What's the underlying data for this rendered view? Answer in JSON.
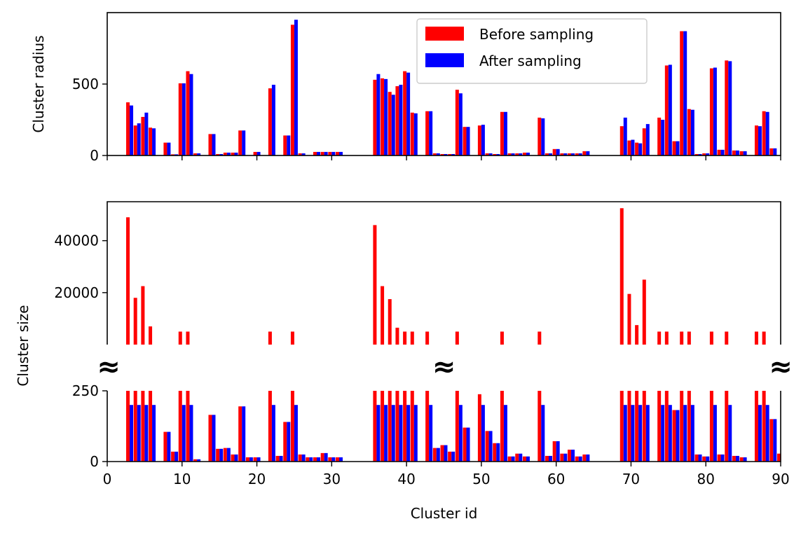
{
  "chart_data": [
    {
      "panel": "top",
      "type": "bar",
      "ylabel": "Cluster radius",
      "xlim": [
        0,
        90
      ],
      "ylim": [
        0,
        1000
      ],
      "yticks": [
        0,
        500
      ],
      "show_xticklabels": false,
      "grid": false,
      "legend": {
        "placement": "top-center"
      },
      "series": [
        {
          "name": "Before sampling",
          "color": "#ff0000",
          "x": [
            3,
            4,
            5,
            6,
            8,
            9,
            10,
            11,
            12,
            14,
            15,
            16,
            17,
            18,
            20,
            22,
            24,
            25,
            26,
            28,
            29,
            30,
            31,
            36,
            37,
            38,
            39,
            40,
            41,
            43,
            44,
            45,
            46,
            47,
            48,
            50,
            51,
            52,
            53,
            54,
            55,
            56,
            58,
            59,
            60,
            61,
            62,
            63,
            64,
            69,
            70,
            71,
            72,
            74,
            75,
            76,
            77,
            78,
            79,
            80,
            81,
            82,
            83,
            84,
            85,
            87,
            88,
            89
          ],
          "values": [
            372,
            210,
            270,
            195,
            90,
            8,
            505,
            590,
            15,
            150,
            10,
            20,
            20,
            175,
            25,
            470,
            140,
            915,
            15,
            25,
            25,
            25,
            25,
            530,
            540,
            445,
            485,
            590,
            300,
            310,
            15,
            10,
            10,
            460,
            200,
            210,
            15,
            10,
            305,
            15,
            15,
            20,
            265,
            15,
            45,
            15,
            15,
            15,
            30,
            205,
            105,
            90,
            190,
            265,
            630,
            100,
            870,
            325,
            10,
            15,
            610,
            40,
            665,
            35,
            30,
            210,
            310,
            50
          ]
        },
        {
          "name": "After sampling",
          "color": "#0000ff",
          "x": [
            3,
            4,
            5,
            6,
            8,
            9,
            10,
            11,
            12,
            14,
            15,
            16,
            17,
            18,
            20,
            22,
            24,
            25,
            26,
            28,
            29,
            30,
            31,
            36,
            37,
            38,
            39,
            40,
            41,
            43,
            44,
            45,
            46,
            47,
            48,
            50,
            51,
            52,
            53,
            54,
            55,
            56,
            58,
            59,
            60,
            61,
            62,
            63,
            64,
            69,
            70,
            71,
            72,
            74,
            75,
            76,
            77,
            78,
            79,
            80,
            81,
            82,
            83,
            84,
            85,
            87,
            88,
            89
          ],
          "values": [
            350,
            225,
            300,
            190,
            90,
            8,
            505,
            570,
            15,
            150,
            10,
            20,
            20,
            175,
            25,
            495,
            140,
            950,
            15,
            25,
            25,
            25,
            25,
            570,
            535,
            425,
            495,
            580,
            295,
            310,
            15,
            10,
            10,
            435,
            200,
            215,
            15,
            10,
            305,
            15,
            15,
            20,
            260,
            15,
            45,
            15,
            15,
            15,
            30,
            265,
            110,
            85,
            220,
            250,
            635,
            100,
            870,
            320,
            10,
            15,
            615,
            40,
            660,
            35,
            30,
            205,
            305,
            50
          ]
        }
      ]
    },
    {
      "panel": "bottom",
      "type": "bar",
      "ylabel": "Cluster size",
      "xlabel": "Cluster id",
      "xlim": [
        0,
        90
      ],
      "xticks": [
        0,
        10,
        20,
        30,
        40,
        50,
        60,
        70,
        80,
        90
      ],
      "broken_axis": true,
      "break_marker": "≈",
      "upper_ylim": [
        0,
        55000
      ],
      "upper_yticks": [
        20000,
        40000
      ],
      "lower_ylim": [
        0,
        250
      ],
      "lower_yticks": [
        0,
        250
      ],
      "grid": false,
      "series": [
        {
          "name": "Before sampling",
          "color": "#ff0000",
          "x": [
            3,
            4,
            5,
            6,
            8,
            9,
            10,
            11,
            12,
            14,
            15,
            16,
            17,
            18,
            19,
            20,
            22,
            23,
            24,
            25,
            26,
            27,
            28,
            29,
            30,
            31,
            36,
            37,
            38,
            39,
            40,
            41,
            43,
            44,
            45,
            46,
            47,
            48,
            50,
            51,
            52,
            53,
            54,
            55,
            56,
            58,
            59,
            60,
            61,
            62,
            63,
            64,
            69,
            70,
            71,
            72,
            74,
            75,
            76,
            77,
            78,
            79,
            80,
            81,
            82,
            83,
            84,
            85,
            87,
            88,
            89,
            90
          ],
          "values": [
            49000,
            18000,
            22500,
            7000,
            105,
            35,
            5000,
            5000,
            8,
            165,
            45,
            48,
            25,
            195,
            15,
            15,
            5000,
            20,
            140,
            5000,
            25,
            15,
            15,
            30,
            15,
            15,
            46000,
            22500,
            17500,
            6500,
            5000,
            5000,
            5000,
            48,
            58,
            35,
            5000,
            120,
            238,
            108,
            65,
            5000,
            18,
            28,
            18,
            5000,
            20,
            72,
            28,
            42,
            18,
            25,
            52500,
            19500,
            7500,
            25000,
            5000,
            5000,
            182,
            5000,
            5000,
            25,
            18,
            5000,
            25,
            5000,
            20,
            15,
            5000,
            5000,
            150,
            28
          ]
        },
        {
          "name": "After sampling",
          "color": "#0000ff",
          "x": [
            3,
            4,
            5,
            6,
            8,
            9,
            10,
            11,
            12,
            14,
            15,
            16,
            17,
            18,
            19,
            20,
            22,
            23,
            24,
            25,
            26,
            27,
            28,
            29,
            30,
            31,
            36,
            37,
            38,
            39,
            40,
            41,
            43,
            44,
            45,
            46,
            47,
            48,
            50,
            51,
            52,
            53,
            54,
            55,
            56,
            58,
            59,
            60,
            61,
            62,
            63,
            64,
            69,
            70,
            71,
            72,
            74,
            75,
            76,
            77,
            78,
            79,
            80,
            81,
            82,
            83,
            84,
            85,
            87,
            88,
            89
          ],
          "values": [
            200,
            200,
            200,
            200,
            105,
            35,
            200,
            200,
            8,
            165,
            45,
            48,
            25,
            195,
            15,
            15,
            200,
            20,
            140,
            200,
            25,
            15,
            15,
            30,
            15,
            15,
            200,
            200,
            200,
            200,
            200,
            200,
            200,
            48,
            58,
            35,
            200,
            120,
            200,
            108,
            65,
            200,
            18,
            28,
            18,
            200,
            20,
            72,
            28,
            42,
            18,
            25,
            200,
            200,
            200,
            200,
            200,
            200,
            182,
            200,
            200,
            25,
            18,
            200,
            25,
            200,
            20,
            15,
            200,
            200,
            150
          ]
        }
      ]
    }
  ]
}
